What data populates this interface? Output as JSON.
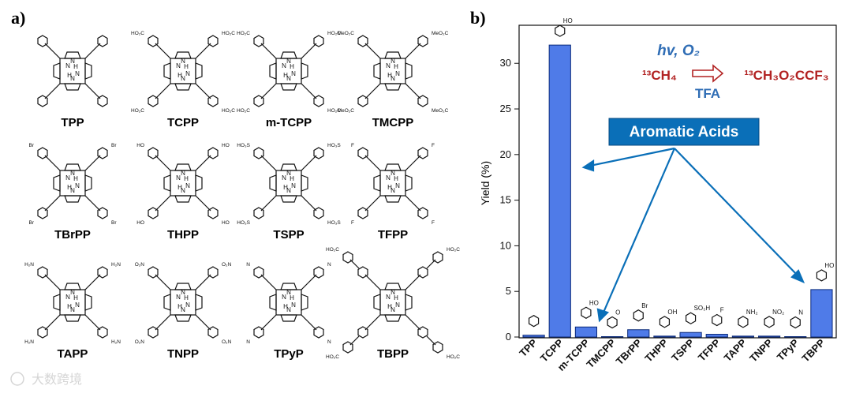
{
  "panel_a": {
    "label": "a)",
    "molecules": [
      {
        "name": "TPP",
        "substituent": ""
      },
      {
        "name": "TCPP",
        "substituent": "HO₂C"
      },
      {
        "name": "m-TCPP",
        "substituent": "HO₂C"
      },
      {
        "name": "TMCPP",
        "substituent": "MeO₂C"
      },
      {
        "name": "TBrPP",
        "substituent": "Br"
      },
      {
        "name": "THPP",
        "substituent": "HO"
      },
      {
        "name": "TSPP",
        "substituent": "HO₃S"
      },
      {
        "name": "TFPP",
        "substituent": "F"
      },
      {
        "name": "TAPP",
        "substituent": "H₂N"
      },
      {
        "name": "TNPP",
        "substituent": "O₂N"
      },
      {
        "name": "TPyP",
        "substituent": "N"
      },
      {
        "name": "TBPP",
        "substituent": "HO₂C"
      }
    ],
    "core_atoms": {
      "n": "N",
      "h": "H"
    }
  },
  "panel_b": {
    "label": "b)",
    "reaction": {
      "conditions": "hv, O₂",
      "reactant": "¹³CH₄",
      "product": "¹³CH₃O₂CCF₃",
      "solvent": "TFA"
    },
    "annotation": "Aromatic Acids",
    "accent_color": "#0a6fb8",
    "bar_color": "#4f7be8",
    "reaction_color": "#b22222",
    "watermark": "大数跨境"
  },
  "chart_data": {
    "type": "bar",
    "categories": [
      "TPP",
      "TCPP",
      "m-TCPP",
      "TMCPP",
      "TBrPP",
      "THPP",
      "TSPP",
      "TFPP",
      "TAPP",
      "TNPP",
      "TPyP",
      "TBPP"
    ],
    "values": [
      0.2,
      32.0,
      1.1,
      0.0,
      0.8,
      0.1,
      0.5,
      0.3,
      0.1,
      0.1,
      0.0,
      5.2
    ],
    "hatched": [
      false,
      true,
      true,
      false,
      false,
      false,
      false,
      false,
      false,
      false,
      false,
      true
    ],
    "ylabel": "Yield (%)",
    "ylim": [
      0,
      34
    ],
    "yticks": [
      0,
      5,
      10,
      15,
      20,
      25,
      30
    ],
    "substituent_labels": [
      "",
      "HO",
      "HO",
      "O",
      "Br",
      "OH",
      "SO₃H",
      "F",
      "NH₂",
      "NO₂",
      "N",
      "HO"
    ]
  }
}
